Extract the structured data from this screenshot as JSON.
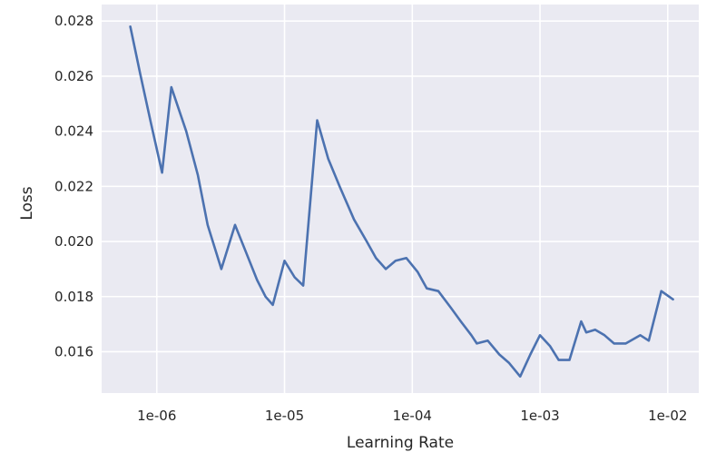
{
  "figure": {
    "background": "#ffffff",
    "plot_background": "#eaeaf2",
    "grid_color": "#ffffff",
    "text_color": "#262626",
    "accent_line_color": "#4c72b0"
  },
  "chart_data": {
    "type": "line",
    "title": "",
    "xlabel": "Learning Rate",
    "ylabel": "Loss",
    "x_scale": "log",
    "y_scale": "linear",
    "grid": true,
    "legend": false,
    "xlim": [
      3.7e-07,
      0.0175
    ],
    "ylim": [
      0.0145,
      0.0286
    ],
    "x_tick_values": [
      1e-06,
      1e-05,
      0.0001,
      0.001,
      0.01
    ],
    "x_tick_labels": [
      "1e-06",
      "1e-05",
      "1e-04",
      "1e-03",
      "1e-02"
    ],
    "y_tick_values": [
      0.016,
      0.018,
      0.02,
      0.022,
      0.024,
      0.026,
      0.028
    ],
    "y_tick_labels": [
      "0.016",
      "0.018",
      "0.020",
      "0.022",
      "0.024",
      "0.026",
      "0.028"
    ],
    "series": [
      {
        "name": "loss",
        "color": "#4c72b0",
        "x": [
          6.2e-07,
          7.4e-07,
          9e-07,
          1.1e-06,
          1.3e-06,
          1.7e-06,
          2.1e-06,
          2.5e-06,
          3.2e-06,
          4.1e-06,
          5e-06,
          6.1e-06,
          7.1e-06,
          8.1e-06,
          1e-05,
          1.2e-05,
          1.4e-05,
          1.8e-05,
          2.2e-05,
          2.7e-05,
          3.5e-05,
          4.4e-05,
          5.2e-05,
          6.2e-05,
          7.4e-05,
          9e-05,
          0.00011,
          0.00013,
          0.00016,
          0.0002,
          0.00024,
          0.00029,
          0.00032,
          0.00039,
          0.00048,
          0.00057,
          0.0007,
          0.00084,
          0.001,
          0.0012,
          0.0014,
          0.0017,
          0.0021,
          0.0023,
          0.0027,
          0.0032,
          0.0038,
          0.0047,
          0.0061,
          0.0071,
          0.0089,
          0.011
        ],
        "y": [
          0.0278,
          0.0261,
          0.0243,
          0.0225,
          0.0256,
          0.024,
          0.0224,
          0.0206,
          0.019,
          0.0206,
          0.0196,
          0.0186,
          0.018,
          0.0177,
          0.0193,
          0.0187,
          0.0184,
          0.0244,
          0.023,
          0.022,
          0.0208,
          0.02,
          0.0194,
          0.019,
          0.0193,
          0.0194,
          0.0189,
          0.0183,
          0.0182,
          0.0176,
          0.0171,
          0.0166,
          0.0163,
          0.0164,
          0.0159,
          0.0156,
          0.0151,
          0.0159,
          0.0166,
          0.0162,
          0.0157,
          0.0157,
          0.0171,
          0.0167,
          0.0168,
          0.0166,
          0.0163,
          0.0163,
          0.0166,
          0.0164,
          0.0182,
          0.0179
        ]
      }
    ]
  }
}
